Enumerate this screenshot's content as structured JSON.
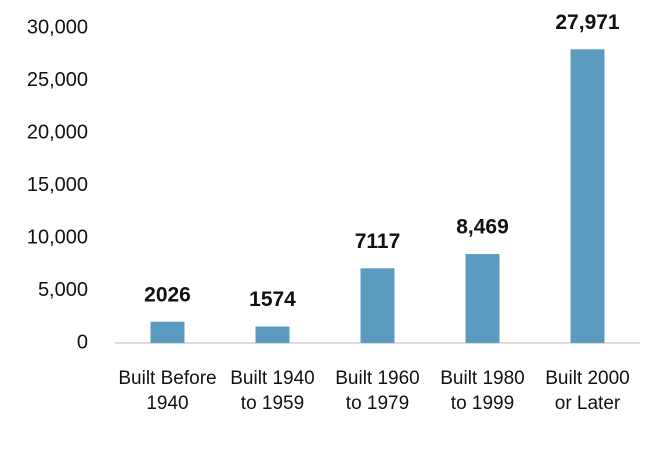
{
  "chart_data": {
    "type": "bar",
    "categories": [
      "Built Before 1940",
      "Built 1940 to 1959",
      "Built 1960 to 1979",
      "Built 1980 to 1999",
      "Built 2000 or Later"
    ],
    "values": [
      2026,
      1574,
      7117,
      8469,
      27971
    ],
    "value_labels": [
      "2026",
      "1574",
      "7117",
      "8,469",
      "27,971"
    ],
    "color": "#5b9bc0",
    "ylim": [
      0,
      30000
    ],
    "yticks": [
      0,
      {
        "value": 5000,
        "label": "5,000"
      },
      {
        "value": 10000,
        "label": "10,000"
      },
      {
        "value": 15000,
        "label": "15,000"
      },
      {
        "value": 20000,
        "label": "20,000"
      },
      {
        "value": 25000,
        "label": "25,000"
      },
      {
        "value": 30000,
        "label": "30,000"
      }
    ],
    "grid": false
  }
}
